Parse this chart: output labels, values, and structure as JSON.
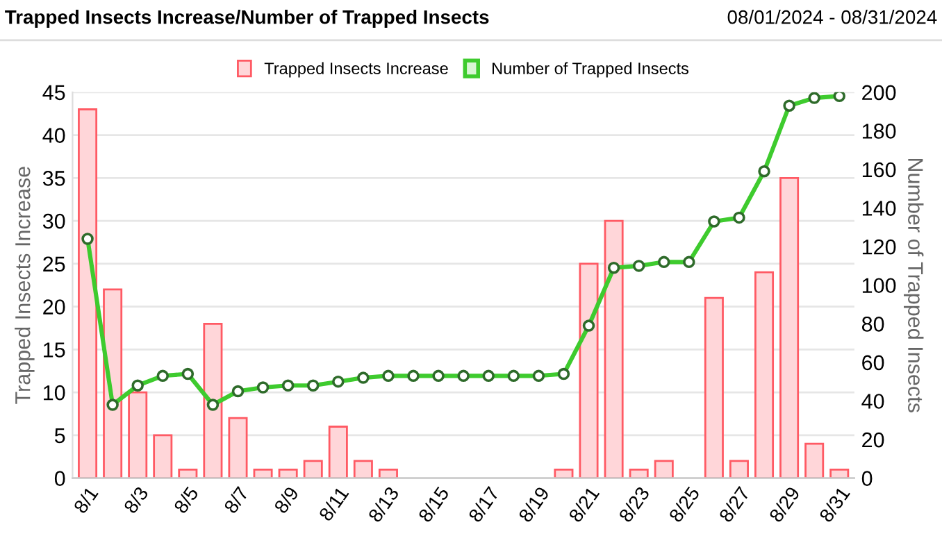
{
  "chart_data": {
    "type": "bar",
    "title": "Trapped Insects Increase/Number of Trapped Insects",
    "subtitle": "08/01/2024 - 08/31/2024",
    "categories": [
      "8/1",
      null,
      "8/3",
      null,
      "8/5",
      null,
      "8/7",
      null,
      "8/9",
      null,
      "8/11",
      null,
      "8/13",
      null,
      "8/15",
      null,
      "8/17",
      null,
      "8/19",
      null,
      "8/21",
      null,
      "8/23",
      null,
      "8/25",
      null,
      "8/27",
      null,
      "8/29",
      null,
      "8/31"
    ],
    "series": [
      {
        "name": "Trapped Insects Increase",
        "color": "#ffd6d9",
        "values": [
          43,
          22,
          10,
          5,
          1,
          18,
          7,
          1,
          1,
          2,
          6,
          2,
          1,
          0,
          0,
          0,
          0,
          0,
          0,
          1,
          25,
          30,
          1,
          2,
          0,
          21,
          2,
          24,
          35,
          4,
          1
        ]
      },
      {
        "name": "Number of Trapped Insects",
        "type": "line",
        "axis": "y2",
        "color": "#3ecb2e",
        "values": [
          124,
          38,
          48,
          53,
          54,
          38,
          45,
          47,
          48,
          48,
          50,
          52,
          53,
          53,
          53,
          53,
          53,
          53,
          53,
          54,
          79,
          109,
          110,
          112,
          112,
          133,
          135,
          159,
          193,
          197,
          198
        ]
      }
    ],
    "ylabel": "Trapped Insects Increase",
    "y2label": "Number of Trapped Insects",
    "ylim": [
      0,
      45
    ],
    "yticks": [
      0,
      5,
      10,
      15,
      20,
      25,
      30,
      35,
      40,
      45
    ],
    "y2lim": [
      0,
      200
    ],
    "y2ticks": [
      0,
      20,
      40,
      60,
      80,
      100,
      120,
      140,
      160,
      180,
      200
    ],
    "grid": "y",
    "legend": "top",
    "marker": "circle",
    "line_style": "solid"
  }
}
